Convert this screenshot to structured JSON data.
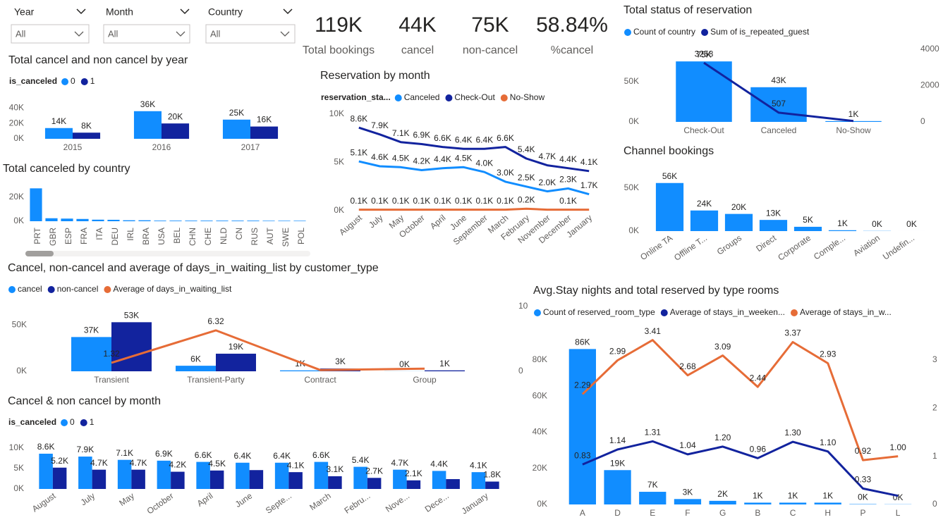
{
  "filters": [
    {
      "label": "Year",
      "value": "All"
    },
    {
      "label": "Month",
      "value": "All"
    },
    {
      "label": "Country",
      "value": "All"
    }
  ],
  "kpis": [
    {
      "value": "119K",
      "label": "Total bookings"
    },
    {
      "value": "44K",
      "label": "cancel"
    },
    {
      "value": "75K",
      "label": "non-cancel"
    },
    {
      "value": "58.84%",
      "label": "%cancel"
    }
  ],
  "chart_data": [
    {
      "type": "bar",
      "title": "Total cancel and non cancel by year",
      "legend_title": "is_canceled",
      "categories": [
        "2015",
        "2016",
        "2017"
      ],
      "series": [
        {
          "name": "0",
          "color": "#118DFF",
          "values": [
            14000,
            36000,
            25000
          ],
          "value_labels": [
            "14K",
            "36K",
            "25K"
          ]
        },
        {
          "name": "1",
          "color": "#12239E",
          "values": [
            8000,
            20000,
            16000
          ],
          "value_labels": [
            "8K",
            "20K",
            "16K"
          ]
        }
      ],
      "ylim": [
        0,
        45000
      ],
      "yticks": [
        {
          "value": 0,
          "label": "0K"
        },
        {
          "value": 20000,
          "label": "20K"
        },
        {
          "value": 40000,
          "label": "40K"
        }
      ]
    },
    {
      "type": "bar",
      "title": "Total canceled by country",
      "categories": [
        "PRT",
        "GBR",
        "ESP",
        "FRA",
        "ITA",
        "DEU",
        "IRL",
        "BRA",
        "USA",
        "BEL",
        "CHN",
        "CHE",
        "NLD",
        "CN",
        "RUS",
        "AUT",
        "SWE",
        "POL"
      ],
      "series": [
        {
          "color": "#118DFF",
          "values": [
            27500,
            2500,
            2200,
            1900,
            1300,
            1200,
            800,
            800,
            500,
            500,
            500,
            500,
            500,
            500,
            500,
            400,
            400,
            400
          ]
        }
      ],
      "ylim": [
        0,
        33000
      ],
      "yticks": [
        {
          "value": 0,
          "label": "0K"
        },
        {
          "value": 20000,
          "label": "20K"
        }
      ]
    },
    {
      "type": "line",
      "title": "Reservation by month",
      "legend_title": "reservation_sta...",
      "categories": [
        "August",
        "July",
        "May",
        "October",
        "April",
        "June",
        "September",
        "March",
        "February",
        "November",
        "December",
        "January"
      ],
      "series": [
        {
          "name": "Canceled",
          "color": "#118DFF",
          "values": [
            5100,
            4600,
            4500,
            4200,
            4400,
            4500,
            4000,
            3000,
            2500,
            2000,
            2300,
            1700
          ],
          "value_labels": [
            "5.1K",
            "4.6K",
            "4.5K",
            "4.2K",
            "4.4K",
            "4.5K",
            "4.0K",
            "3.0K",
            "2.5K",
            "2.0K",
            "2.3K",
            "1.7K"
          ]
        },
        {
          "name": "Check-Out",
          "color": "#12239E",
          "values": [
            8600,
            7900,
            7100,
            6900,
            6600,
            6400,
            6400,
            6600,
            5400,
            4700,
            4400,
            4100
          ],
          "value_labels": [
            "8.6K",
            "7.9K",
            "7.1K",
            "6.9K",
            "6.6K",
            "6.4K",
            "6.4K",
            "6.6K",
            "5.4K",
            "4.7K",
            "4.4K",
            "4.1K"
          ]
        },
        {
          "name": "No-Show",
          "color": "#E66C37",
          "values": [
            100,
            100,
            100,
            100,
            100,
            100,
            100,
            100,
            200,
            100,
            100,
            100
          ],
          "value_labels": [
            "0.1K",
            "0.1K",
            "0.1K",
            "0.1K",
            "0.1K",
            "0.1K",
            "0.1K",
            "0.1K",
            "0.2K",
            null,
            "0.1K",
            null
          ]
        }
      ],
      "ylim": [
        0,
        10000
      ],
      "yticks": [
        {
          "value": 0,
          "label": "0K"
        },
        {
          "value": 5000,
          "label": "5K"
        },
        {
          "value": 10000,
          "label": "10K"
        }
      ]
    },
    {
      "type": "combo",
      "title": "Total status of reservation",
      "categories": [
        "Check-Out",
        "Canceled",
        "No-Show"
      ],
      "series": [
        {
          "name": "Count of country",
          "color": "#118DFF",
          "values": [
            75000,
            43000,
            1000
          ],
          "value_labels": [
            "75K",
            "43K",
            "1K"
          ]
        },
        {
          "name": "Sum of is_repeated_guest",
          "color": "#12239E",
          "axis": "y2",
          "values": [
            3258,
            507,
            50
          ],
          "value_labels": [
            "3258",
            "507",
            null
          ]
        }
      ],
      "ylim": [
        0,
        90000
      ],
      "yticks": [
        {
          "value": 0,
          "label": "0K"
        },
        {
          "value": 50000,
          "label": "50K"
        }
      ],
      "y2lim": [
        0,
        4000
      ],
      "y2ticks": [
        0,
        2000,
        4000
      ]
    },
    {
      "type": "bar",
      "title": "Channel bookings",
      "categories": [
        "Online TA",
        "Offline T...",
        "Groups",
        "Direct",
        "Corporate",
        "Comple...",
        "Aviation",
        "Undefin..."
      ],
      "series": [
        {
          "color": "#118DFF",
          "values": [
            56000,
            24000,
            20000,
            13000,
            5000,
            1000,
            200,
            5
          ],
          "value_labels": [
            "56K",
            "24K",
            "20K",
            "13K",
            "5K",
            "1K",
            "0K",
            "0K"
          ]
        }
      ],
      "ylim": [
        0,
        64000
      ],
      "yticks": [
        {
          "value": 0,
          "label": "0K"
        },
        {
          "value": 50000,
          "label": "50K"
        }
      ]
    },
    {
      "type": "combo",
      "title": "Cancel, non-cancel and average of days_in_waiting_list by customer_type",
      "categories": [
        "Transient",
        "Transient-Party",
        "Contract",
        "Group"
      ],
      "series": [
        {
          "name": "cancel",
          "color": "#118DFF",
          "values": [
            37000,
            6000,
            1000,
            100
          ],
          "value_labels": [
            "37K",
            "6K",
            "1K",
            "0K"
          ]
        },
        {
          "name": "non-cancel",
          "color": "#12239E",
          "values": [
            53000,
            19000,
            3000,
            1000
          ],
          "value_labels": [
            "53K",
            "19K",
            "3K",
            "1K"
          ]
        },
        {
          "name": "Average of days_in_waiting_list",
          "color": "#E66C37",
          "axis": "y2",
          "values": [
            1.32,
            6.32,
            0.2,
            0.4
          ],
          "value_labels": [
            "1.32",
            "6.32",
            null,
            null
          ]
        }
      ],
      "ylim": [
        0,
        70000
      ],
      "yticks": [
        {
          "value": 0,
          "label": "0K"
        },
        {
          "value": 50000,
          "label": "50K"
        }
      ],
      "y2lim": [
        0,
        10
      ],
      "y2ticks": [
        0,
        10
      ]
    },
    {
      "type": "bar",
      "title": "Cancel & non cancel by month",
      "legend_title": "is_canceled",
      "categories": [
        "August",
        "July",
        "May",
        "October",
        "April",
        "June",
        "Septe...",
        "March",
        "Febru...",
        "Nove...",
        "Dece...",
        "January"
      ],
      "series": [
        {
          "name": "0",
          "color": "#118DFF",
          "values": [
            8600,
            7900,
            7100,
            6900,
            6600,
            6400,
            6400,
            6600,
            5400,
            4700,
            4400,
            4100
          ],
          "value_labels": [
            "8.6K",
            "7.9K",
            "7.1K",
            "6.9K",
            "6.6K",
            "6.4K",
            "6.4K",
            "6.6K",
            "5.4K",
            "4.7K",
            "4.4K",
            "4.1K"
          ]
        },
        {
          "name": "1",
          "color": "#12239E",
          "values": [
            5200,
            4700,
            4700,
            4200,
            4500,
            4600,
            4100,
            3100,
            2700,
            2100,
            2400,
            1800
          ],
          "value_labels": [
            "5.2K",
            "4.7K",
            "4.7K",
            "4.2K",
            "4.5K",
            null,
            "4.1K",
            "3.1K",
            "2.7K",
            "2.1K",
            null,
            "1.8K"
          ]
        }
      ],
      "ylim": [
        0,
        11000
      ],
      "yticks": [
        {
          "value": 0,
          "label": "0K"
        },
        {
          "value": 5000,
          "label": "5K"
        },
        {
          "value": 10000,
          "label": "10K"
        }
      ]
    },
    {
      "type": "combo",
      "title": "Avg.Stay nights and total reserved by type rooms",
      "categories": [
        "A",
        "D",
        "E",
        "F",
        "G",
        "B",
        "C",
        "H",
        "P",
        "L"
      ],
      "series": [
        {
          "name": "Count of reserved_room_type",
          "color": "#118DFF",
          "values": [
            86000,
            19000,
            7000,
            3000,
            2000,
            1000,
            1000,
            1000,
            200,
            100
          ],
          "value_labels": [
            "86K",
            "19K",
            "7K",
            "3K",
            "2K",
            "1K",
            "1K",
            "1K",
            "0K",
            "0K"
          ]
        },
        {
          "name": "Average of stays_in_weeken...",
          "color": "#12239E",
          "axis": "y2",
          "values": [
            0.83,
            1.14,
            1.31,
            1.04,
            1.2,
            0.96,
            1.3,
            1.1,
            0.33,
            0.18
          ],
          "value_labels": [
            "0.83",
            "1.14",
            "1.31",
            "1.04",
            "1.20",
            "0.96",
            "1.30",
            "1.10",
            "0.33",
            null
          ]
        },
        {
          "name": "Average of stays_in_w...",
          "color": "#E66C37",
          "axis": "y2",
          "values": [
            2.29,
            2.99,
            3.41,
            2.68,
            3.09,
            2.44,
            3.37,
            2.93,
            0.92,
            1.0
          ],
          "value_labels": [
            "2.29",
            "2.99",
            "3.41",
            "2.68",
            "3.09",
            "2.44",
            "3.37",
            "2.93",
            "0.92",
            "1.00"
          ]
        }
      ],
      "ylim": [
        0,
        92000
      ],
      "yticks": [
        {
          "value": 0,
          "label": "0K"
        },
        {
          "value": 20000,
          "label": "20K"
        },
        {
          "value": 40000,
          "label": "40K"
        },
        {
          "value": 60000,
          "label": "60K"
        },
        {
          "value": 80000,
          "label": "80K"
        }
      ],
      "y2lim": [
        0,
        3.45
      ],
      "y2ticks": [
        0,
        1,
        2,
        3
      ]
    }
  ]
}
